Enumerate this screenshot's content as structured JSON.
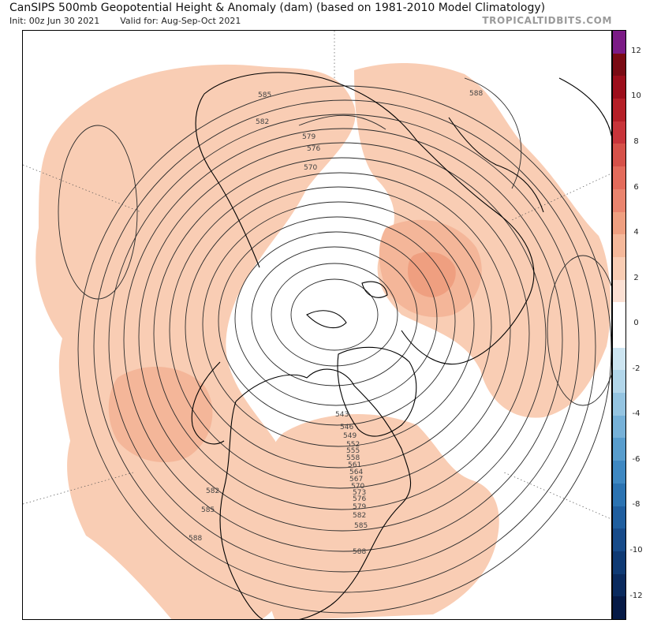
{
  "header": {
    "title": "CanSIPS 500mb Geopotential Height & Anomaly (dam) (based on 1981-2010 Model Climatology)",
    "init": "Init: 00z Jun 30 2021",
    "valid": "Valid for: Aug-Sep-Oct 2021",
    "brand": "TROPICALTIDBITS.COM"
  },
  "map": {
    "projection": "north-polar-stereographic",
    "contour_labels": [
      "585",
      "582",
      "579",
      "576",
      "570",
      "588",
      "543",
      "546",
      "549",
      "552",
      "555",
      "558",
      "561",
      "564",
      "567",
      "570",
      "573",
      "576",
      "579",
      "582",
      "585",
      "582",
      "585",
      "588",
      "588"
    ],
    "anomaly_fill_color": "#f9cdb4",
    "strong_anomaly_color": "#ef9f80",
    "contour_color": "#2b2b2b",
    "coast_color": "#000000"
  },
  "colorbar": {
    "ticks": [
      "12",
      "10",
      "8",
      "6",
      "4",
      "2",
      "0",
      "-2",
      "-4",
      "-6",
      "-8",
      "-10",
      "-12"
    ],
    "segments": [
      "#7b1b86",
      "#7a0b14",
      "#9c0e1b",
      "#b51f27",
      "#c8343a",
      "#d65149",
      "#e36b5b",
      "#ea846e",
      "#ef9f80",
      "#f5b89a",
      "#f9cdb4",
      "#fbe0d3",
      "#ffffff",
      "#ffffff",
      "#cde5f1",
      "#b2d6ea",
      "#94c4e1",
      "#76b1d8",
      "#589dcd",
      "#3e88c2",
      "#2b73b2",
      "#1f5e9f",
      "#174b8a",
      "#0f3a74",
      "#0a2a5e",
      "#061a46"
    ]
  }
}
